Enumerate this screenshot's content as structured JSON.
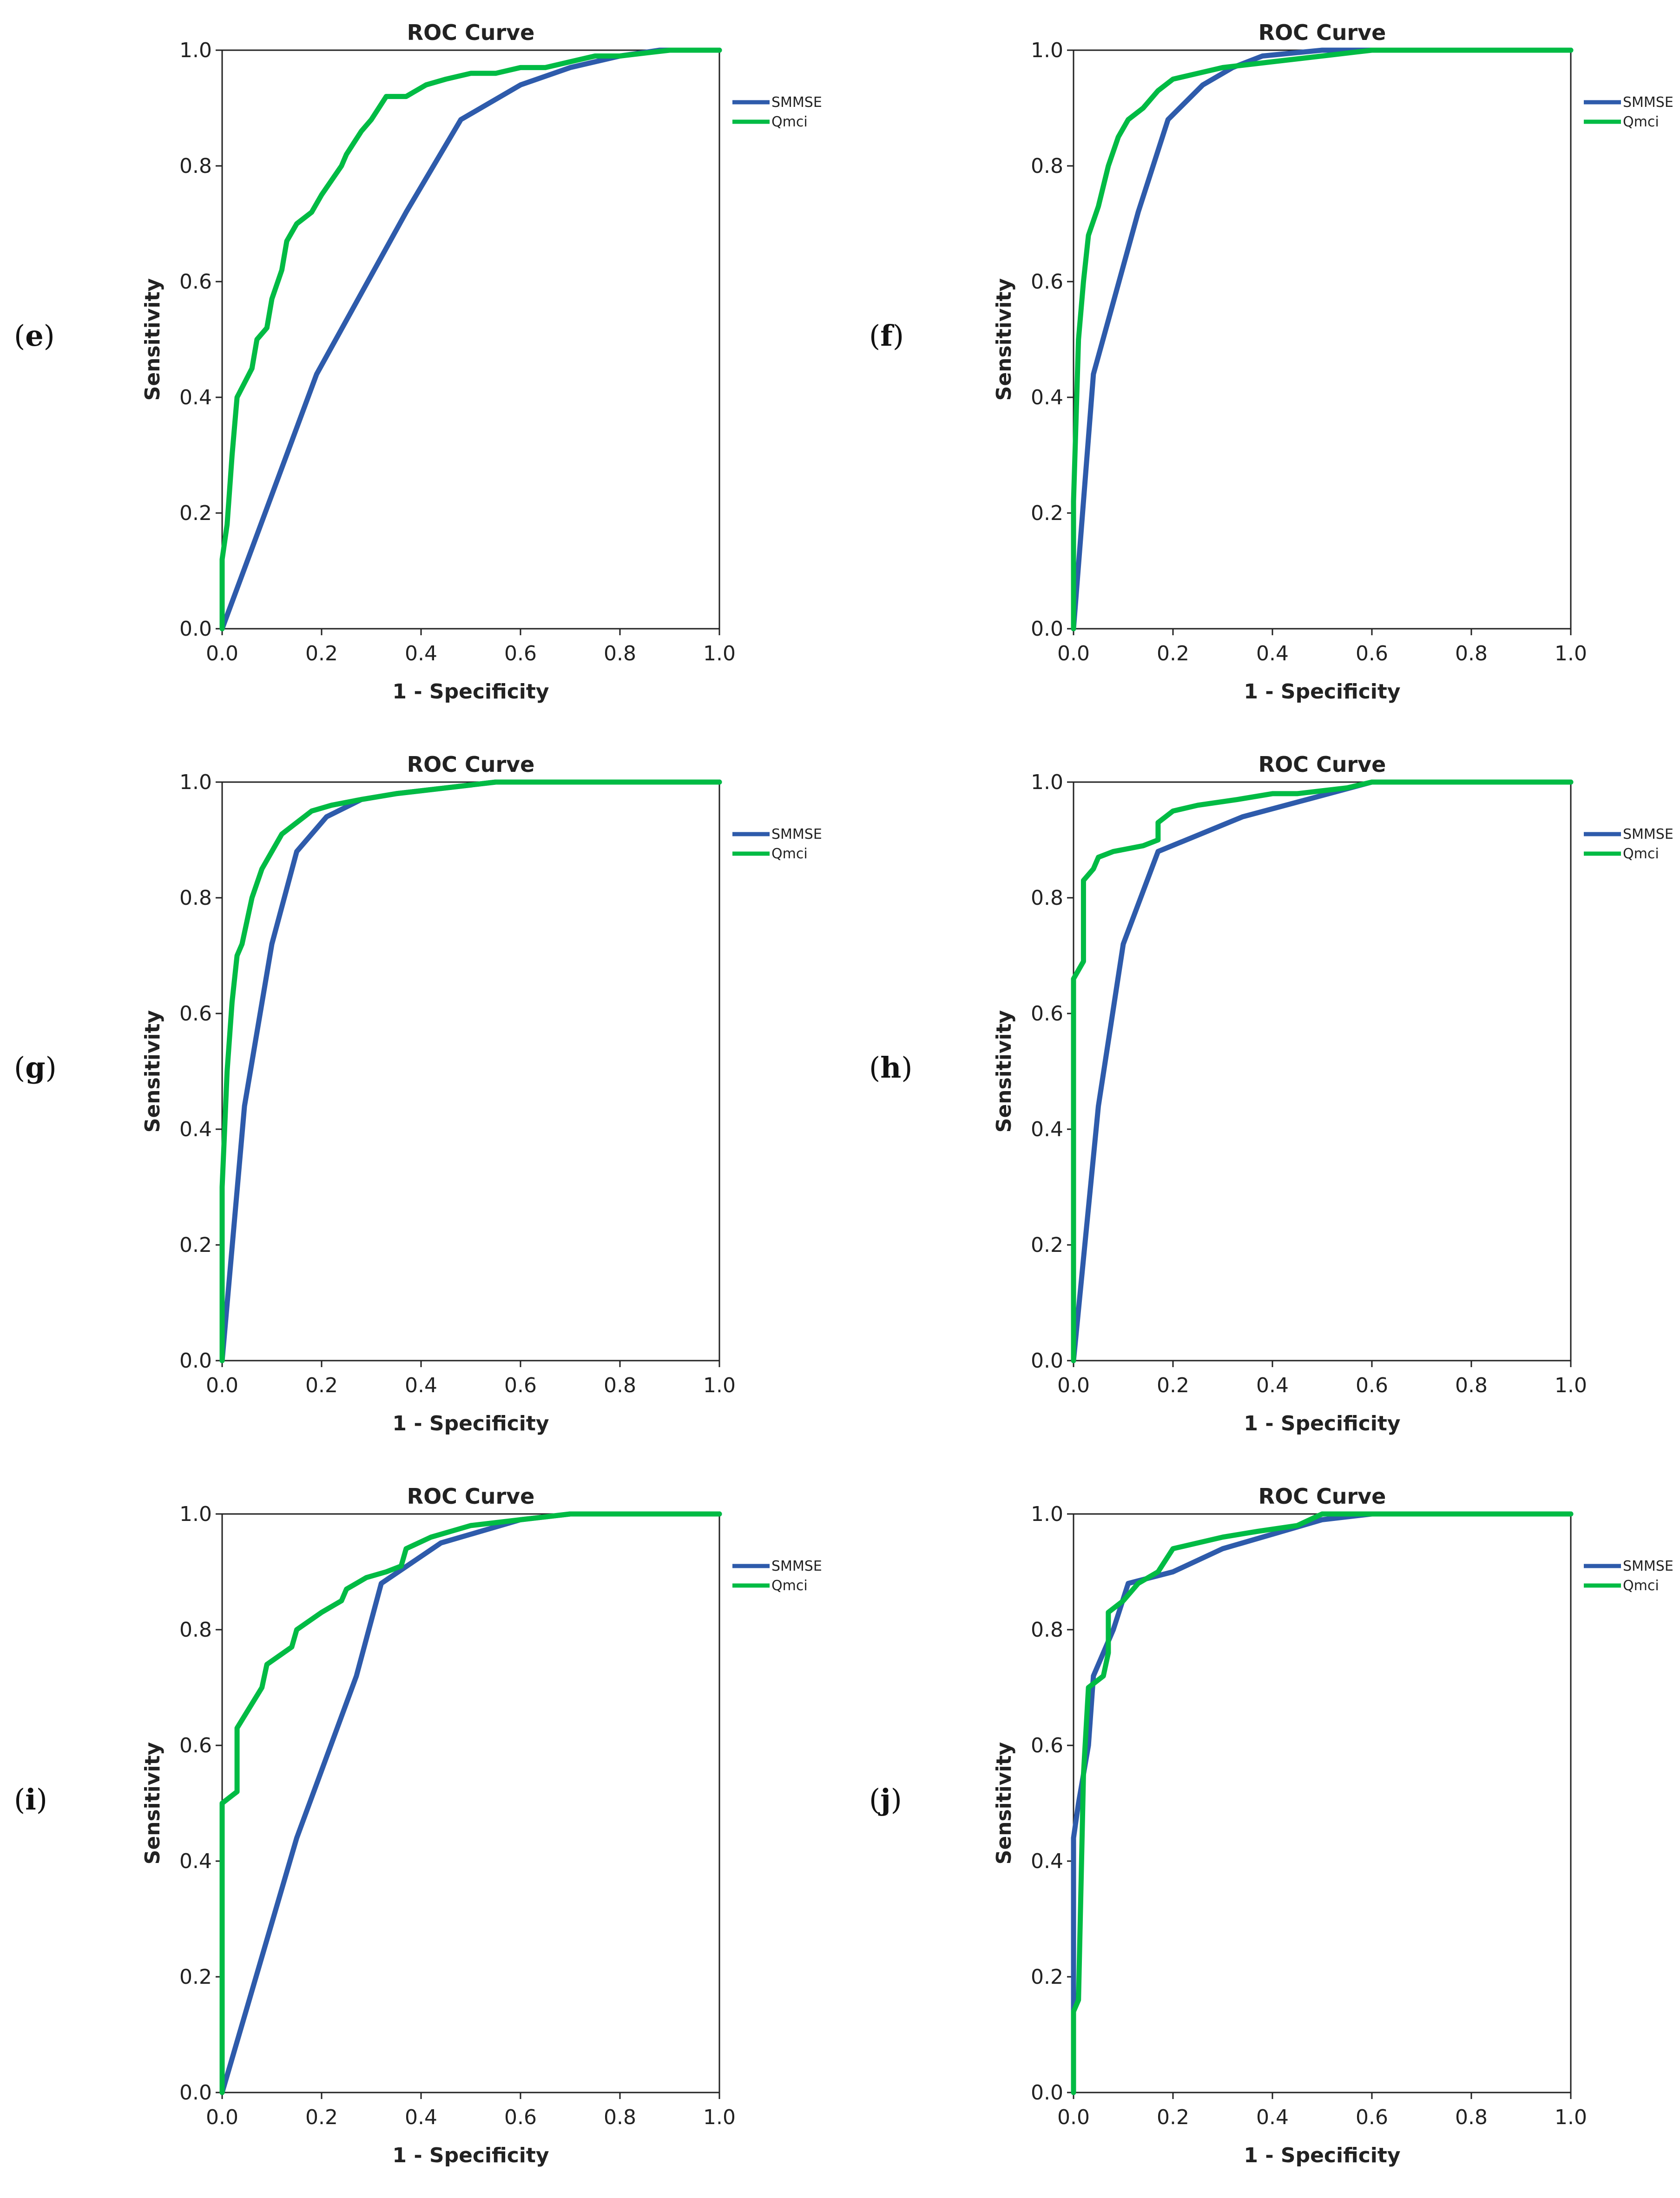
{
  "colors": {
    "smmse": "#2e5bab",
    "qmci": "#00bb44",
    "axis": "#222222"
  },
  "chart_data": [
    {
      "label": "e",
      "type": "line",
      "title": "ROC Curve",
      "xlabel": "1 - Specificity",
      "ylabel": "Sensitivity",
      "xlim": [
        0,
        1
      ],
      "ylim": [
        0,
        1
      ],
      "xticks": [
        "0.0",
        "0.2",
        "0.4",
        "0.6",
        "0.8",
        "1.0"
      ],
      "yticks": [
        "0.0",
        "0.2",
        "0.4",
        "0.6",
        "0.8",
        "1.0"
      ],
      "legend": "right",
      "series": [
        {
          "name": "SMMSE",
          "x": [
            0,
            0.19,
            0.37,
            0.48,
            0.6,
            0.7,
            0.8,
            0.88,
            1.0
          ],
          "y": [
            0,
            0.44,
            0.72,
            0.88,
            0.94,
            0.97,
            0.99,
            1.0,
            1.0
          ]
        },
        {
          "name": "Qmci",
          "x": [
            0,
            0.0,
            0.01,
            0.02,
            0.03,
            0.06,
            0.07,
            0.09,
            0.1,
            0.12,
            0.13,
            0.15,
            0.18,
            0.2,
            0.24,
            0.25,
            0.28,
            0.3,
            0.33,
            0.37,
            0.41,
            0.45,
            0.5,
            0.55,
            0.6,
            0.65,
            0.7,
            0.75,
            0.8,
            0.9,
            1.0
          ],
          "y": [
            0,
            0.12,
            0.18,
            0.3,
            0.4,
            0.45,
            0.5,
            0.52,
            0.57,
            0.62,
            0.67,
            0.7,
            0.72,
            0.75,
            0.8,
            0.82,
            0.86,
            0.88,
            0.92,
            0.92,
            0.94,
            0.95,
            0.96,
            0.96,
            0.97,
            0.97,
            0.98,
            0.99,
            0.99,
            1.0,
            1.0
          ]
        }
      ]
    },
    {
      "label": "f",
      "type": "line",
      "title": "ROC Curve",
      "xlabel": "1 - Specificity",
      "ylabel": "Sensitivity",
      "xlim": [
        0,
        1
      ],
      "ylim": [
        0,
        1
      ],
      "xticks": [
        "0.0",
        "0.2",
        "0.4",
        "0.6",
        "0.8",
        "1.0"
      ],
      "yticks": [
        "0.0",
        "0.2",
        "0.4",
        "0.6",
        "0.8",
        "1.0"
      ],
      "legend": "right",
      "series": [
        {
          "name": "SMMSE",
          "x": [
            0,
            0.04,
            0.13,
            0.19,
            0.26,
            0.32,
            0.38,
            0.5,
            0.6,
            1.0
          ],
          "y": [
            0,
            0.44,
            0.72,
            0.88,
            0.94,
            0.97,
            0.99,
            1.0,
            1.0,
            1.0
          ]
        },
        {
          "name": "Qmci",
          "x": [
            0,
            0.0,
            0.01,
            0.02,
            0.03,
            0.05,
            0.07,
            0.09,
            0.11,
            0.14,
            0.17,
            0.2,
            0.25,
            0.3,
            0.4,
            0.5,
            0.6,
            1.0
          ],
          "y": [
            0,
            0.22,
            0.5,
            0.6,
            0.68,
            0.73,
            0.8,
            0.85,
            0.88,
            0.9,
            0.93,
            0.95,
            0.96,
            0.97,
            0.98,
            0.99,
            1.0,
            1.0
          ]
        }
      ]
    },
    {
      "label": "g",
      "type": "line",
      "title": "ROC Curve",
      "xlabel": "1 - Specificity",
      "ylabel": "Sensitivity",
      "xlim": [
        0,
        1
      ],
      "ylim": [
        0,
        1
      ],
      "xticks": [
        "0.0",
        "0.2",
        "0.4",
        "0.6",
        "0.8",
        "1.0"
      ],
      "yticks": [
        "0.0",
        "0.2",
        "0.4",
        "0.6",
        "0.8",
        "1.0"
      ],
      "legend": "right",
      "series": [
        {
          "name": "SMMSE",
          "x": [
            0,
            0.045,
            0.1,
            0.15,
            0.21,
            0.28,
            0.35,
            0.45,
            0.55,
            1.0
          ],
          "y": [
            0,
            0.44,
            0.72,
            0.88,
            0.94,
            0.97,
            0.98,
            0.99,
            1.0,
            1.0
          ]
        },
        {
          "name": "Qmci",
          "x": [
            0,
            0.0,
            0.01,
            0.02,
            0.03,
            0.04,
            0.05,
            0.06,
            0.08,
            0.1,
            0.12,
            0.15,
            0.18,
            0.22,
            0.28,
            0.35,
            0.45,
            0.55,
            1.0
          ],
          "y": [
            0,
            0.3,
            0.5,
            0.62,
            0.7,
            0.72,
            0.76,
            0.8,
            0.85,
            0.88,
            0.91,
            0.93,
            0.95,
            0.96,
            0.97,
            0.98,
            0.99,
            1.0,
            1.0
          ]
        }
      ]
    },
    {
      "label": "h",
      "type": "line",
      "title": "ROC Curve",
      "xlabel": "1 - Specificity",
      "ylabel": "Sensitivity",
      "xlim": [
        0,
        1
      ],
      "ylim": [
        0,
        1
      ],
      "xticks": [
        "0.0",
        "0.2",
        "0.4",
        "0.6",
        "0.8",
        "1.0"
      ],
      "yticks": [
        "0.0",
        "0.2",
        "0.4",
        "0.6",
        "0.8",
        "1.0"
      ],
      "legend": "right",
      "series": [
        {
          "name": "SMMSE",
          "x": [
            0,
            0.05,
            0.1,
            0.17,
            0.34,
            0.47,
            0.6,
            1.0
          ],
          "y": [
            0,
            0.44,
            0.72,
            0.88,
            0.94,
            0.97,
            1.0,
            1.0
          ]
        },
        {
          "name": "Qmci",
          "x": [
            0,
            0.0,
            0.02,
            0.02,
            0.04,
            0.05,
            0.08,
            0.14,
            0.17,
            0.17,
            0.2,
            0.25,
            0.33,
            0.4,
            0.45,
            0.55,
            0.6,
            0.7,
            1.0
          ],
          "y": [
            0,
            0.66,
            0.69,
            0.83,
            0.85,
            0.87,
            0.88,
            0.89,
            0.9,
            0.93,
            0.95,
            0.96,
            0.97,
            0.98,
            0.98,
            0.99,
            1.0,
            1.0,
            1.0
          ]
        }
      ]
    },
    {
      "label": "i",
      "type": "line",
      "title": "ROC Curve",
      "xlabel": "1 - Specificity",
      "ylabel": "Sensitivity",
      "xlim": [
        0,
        1
      ],
      "ylim": [
        0,
        1
      ],
      "xticks": [
        "0.0",
        "0.2",
        "0.4",
        "0.6",
        "0.8",
        "1.0"
      ],
      "yticks": [
        "0.0",
        "0.2",
        "0.4",
        "0.6",
        "0.8",
        "1.0"
      ],
      "legend": "right",
      "series": [
        {
          "name": "SMMSE",
          "x": [
            0,
            0.15,
            0.27,
            0.32,
            0.44,
            0.6,
            0.7,
            1.0
          ],
          "y": [
            0,
            0.44,
            0.72,
            0.88,
            0.95,
            0.99,
            1.0,
            1.0
          ]
        },
        {
          "name": "Qmci",
          "x": [
            0,
            0.0,
            0.03,
            0.03,
            0.08,
            0.09,
            0.14,
            0.15,
            0.2,
            0.24,
            0.25,
            0.29,
            0.33,
            0.36,
            0.37,
            0.42,
            0.46,
            0.5,
            0.6,
            0.7,
            1.0
          ],
          "y": [
            0,
            0.5,
            0.52,
            0.63,
            0.7,
            0.74,
            0.77,
            0.8,
            0.83,
            0.85,
            0.87,
            0.89,
            0.9,
            0.91,
            0.94,
            0.96,
            0.97,
            0.98,
            0.99,
            1.0,
            1.0
          ]
        }
      ]
    },
    {
      "label": "j",
      "type": "line",
      "title": "ROC Curve",
      "xlabel": "1 - Specificity",
      "ylabel": "Sensitivity",
      "xlim": [
        0,
        1
      ],
      "ylim": [
        0,
        1
      ],
      "xticks": [
        "0.0",
        "0.2",
        "0.4",
        "0.6",
        "0.8",
        "1.0"
      ],
      "yticks": [
        "0.0",
        "0.2",
        "0.4",
        "0.6",
        "0.8",
        "1.0"
      ],
      "legend": "right",
      "series": [
        {
          "name": "SMMSE",
          "x": [
            0,
            0.0,
            0.01,
            0.03,
            0.04,
            0.08,
            0.11,
            0.2,
            0.3,
            0.42,
            0.5,
            0.6,
            1.0
          ],
          "y": [
            0,
            0.44,
            0.5,
            0.6,
            0.72,
            0.8,
            0.88,
            0.9,
            0.94,
            0.97,
            0.99,
            1.0,
            1.0
          ]
        },
        {
          "name": "Qmci",
          "x": [
            0,
            0.0,
            0.01,
            0.02,
            0.03,
            0.06,
            0.07,
            0.07,
            0.1,
            0.13,
            0.17,
            0.2,
            0.3,
            0.37,
            0.45,
            0.5,
            0.6,
            1.0
          ],
          "y": [
            0,
            0.14,
            0.16,
            0.55,
            0.7,
            0.72,
            0.76,
            0.83,
            0.85,
            0.88,
            0.9,
            0.94,
            0.96,
            0.97,
            0.98,
            1.0,
            1.0,
            1.0
          ]
        }
      ]
    }
  ]
}
